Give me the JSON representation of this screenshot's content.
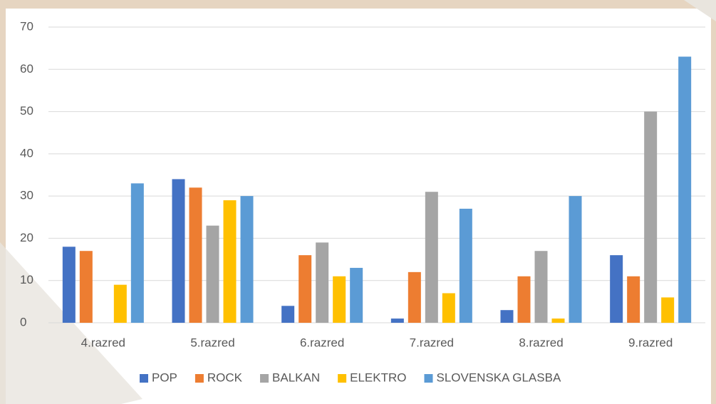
{
  "chart_data": {
    "type": "bar",
    "categories": [
      "4.razred",
      "5.razred",
      "6.razred",
      "7.razred",
      "8.razred",
      "9.razred"
    ],
    "series": [
      {
        "name": "POP",
        "color": "#4472c4",
        "values": [
          18,
          34,
          4,
          1,
          3,
          16
        ]
      },
      {
        "name": "ROCK",
        "color": "#ed7d31",
        "values": [
          17,
          32,
          16,
          12,
          11,
          11
        ]
      },
      {
        "name": "BALKAN",
        "color": "#a5a5a5",
        "values": [
          0,
          23,
          19,
          31,
          17,
          50
        ]
      },
      {
        "name": "ELEKTRO",
        "color": "#ffc000",
        "values": [
          9,
          29,
          11,
          7,
          1,
          6
        ]
      },
      {
        "name": "SLOVENSKA GLASBA",
        "color": "#5b9bd5",
        "values": [
          33,
          30,
          13,
          27,
          30,
          63
        ]
      }
    ],
    "ylim": [
      0,
      70
    ],
    "yticks": [
      0,
      10,
      20,
      30,
      40,
      50,
      60,
      70
    ],
    "grid": true,
    "legend": "bottom"
  }
}
